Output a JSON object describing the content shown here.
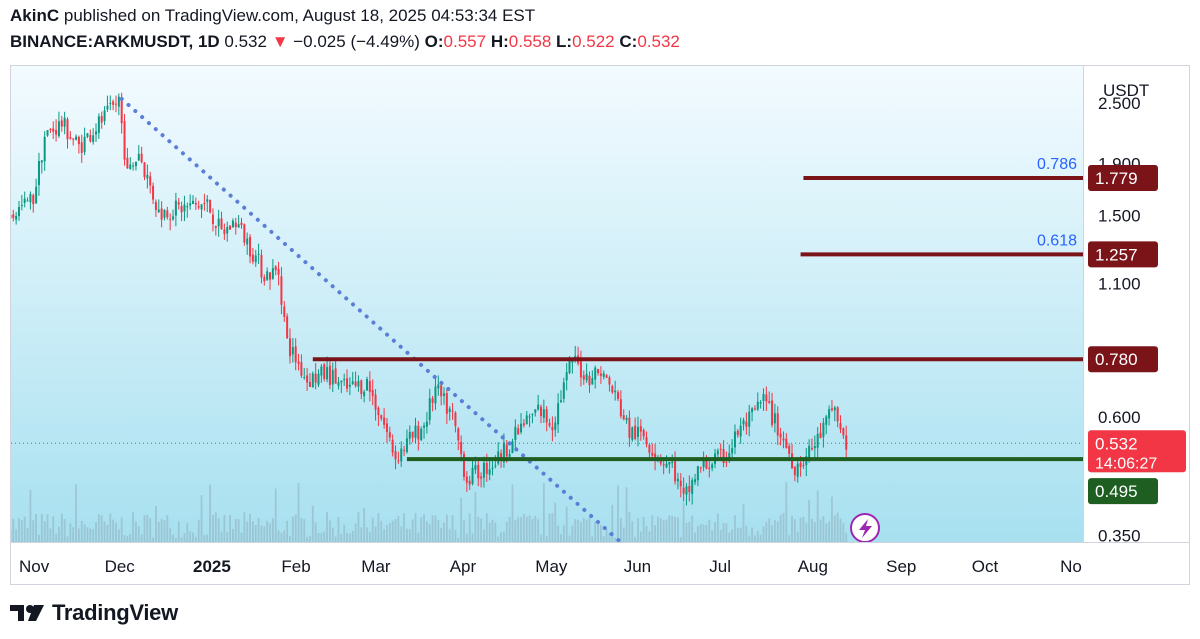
{
  "header": {
    "author": "AkinC",
    "published": "published on TradingView.com, August 18, 2025 04:53:34 EST",
    "symbol": "BINANCE:ARKMUSDT, 1D",
    "last": "0.532",
    "change_arrow": "▼",
    "change": "−0.025 (−4.49%)",
    "o_label": "O:",
    "o": "0.557",
    "h_label": "H:",
    "h": "0.558",
    "l_label": "L:",
    "l": "0.522",
    "c_label": "C:",
    "c": "0.532"
  },
  "footer": {
    "brand": "TradingView",
    "logo_icon": "tradingview-logo-icon"
  },
  "colors": {
    "up": "#089981",
    "down": "#f23645",
    "trend": "#5b7fd6",
    "resistance": "#7b1418",
    "support": "#1e5e20",
    "fib_text": "#2962ff",
    "bg_top": "#f3fbff",
    "bg_bottom": "#a7e0f0"
  },
  "chart_data": {
    "type": "candlestick",
    "symbol": "BINANCE:ARKMUSDT",
    "interval": "1D",
    "y_unit": "USDT",
    "y_scale": "log",
    "ylim": [
      0.32,
      3.2
    ],
    "y_ticks": [
      "2.500",
      "1.900",
      "1.500",
      "1.100",
      "0.600",
      "0.350"
    ],
    "x_ticks": [
      "Nov",
      "Dec",
      "2025",
      "Feb",
      "Mar",
      "Apr",
      "May",
      "Jun",
      "Jul",
      "Aug",
      "Sep",
      "Oct",
      "No"
    ],
    "x_tick_dates": [
      "2024-11-01",
      "2024-12-01",
      "2025-01-01",
      "2025-02-01",
      "2025-03-01",
      "2025-04-01",
      "2025-05-01",
      "2025-06-01",
      "2025-07-01",
      "2025-08-01",
      "2025-09-01",
      "2025-10-01",
      "2025-11-01"
    ],
    "price_path": [
      [
        "2024-10-28",
        1.48
      ],
      [
        "2024-11-06",
        1.62
      ],
      [
        "2024-11-10",
        2.15
      ],
      [
        "2024-11-16",
        2.28
      ],
      [
        "2024-11-22",
        2.05
      ],
      [
        "2024-11-28",
        2.25
      ],
      [
        "2024-12-03",
        2.4
      ],
      [
        "2024-12-06",
        2.55
      ],
      [
        "2024-12-09",
        1.8
      ],
      [
        "2024-12-13",
        2.0
      ],
      [
        "2024-12-20",
        1.52
      ],
      [
        "2024-12-27",
        1.55
      ],
      [
        "2025-01-06",
        1.58
      ],
      [
        "2025-01-11",
        1.38
      ],
      [
        "2025-01-16",
        1.46
      ],
      [
        "2025-01-21",
        1.3
      ],
      [
        "2025-01-26",
        1.15
      ],
      [
        "2025-01-31",
        1.16
      ],
      [
        "2025-02-03",
        0.84
      ],
      [
        "2025-02-10",
        0.71
      ],
      [
        "2025-02-17",
        0.73
      ],
      [
        "2025-02-24",
        0.68
      ],
      [
        "2025-03-03",
        0.7
      ],
      [
        "2025-03-08",
        0.6
      ],
      [
        "2025-03-13",
        0.5
      ],
      [
        "2025-03-18",
        0.54
      ],
      [
        "2025-03-23",
        0.58
      ],
      [
        "2025-03-27",
        0.68
      ],
      [
        "2025-04-02",
        0.6
      ],
      [
        "2025-04-07",
        0.45
      ],
      [
        "2025-04-12",
        0.47
      ],
      [
        "2025-04-17",
        0.49
      ],
      [
        "2025-04-22",
        0.53
      ],
      [
        "2025-04-27",
        0.58
      ],
      [
        "2025-05-02",
        0.62
      ],
      [
        "2025-05-07",
        0.58
      ],
      [
        "2025-05-10",
        0.66
      ],
      [
        "2025-05-14",
        0.78
      ],
      [
        "2025-05-19",
        0.72
      ],
      [
        "2025-05-24",
        0.74
      ],
      [
        "2025-05-29",
        0.66
      ],
      [
        "2025-06-03",
        0.56
      ],
      [
        "2025-06-08",
        0.55
      ],
      [
        "2025-06-13",
        0.5
      ],
      [
        "2025-06-18",
        0.48
      ],
      [
        "2025-06-22",
        0.41
      ],
      [
        "2025-06-27",
        0.47
      ],
      [
        "2025-07-02",
        0.49
      ],
      [
        "2025-07-07",
        0.5
      ],
      [
        "2025-07-11",
        0.56
      ],
      [
        "2025-07-16",
        0.6
      ],
      [
        "2025-07-20",
        0.65
      ],
      [
        "2025-07-25",
        0.57
      ],
      [
        "2025-07-31",
        0.48
      ],
      [
        "2025-08-04",
        0.5
      ],
      [
        "2025-08-08",
        0.54
      ],
      [
        "2025-08-12",
        0.6
      ],
      [
        "2025-08-14",
        0.63
      ],
      [
        "2025-08-16",
        0.56
      ],
      [
        "2025-08-18",
        0.532
      ]
    ],
    "last_price": {
      "value": "0.532",
      "countdown": "14:06:27"
    },
    "horizontal_levels": [
      {
        "value": "1.779",
        "fib": "0.786",
        "start": "2025-08-03",
        "color": "#7b1418"
      },
      {
        "value": "1.257",
        "fib": "0.618",
        "start": "2025-08-02",
        "color": "#7b1418"
      },
      {
        "value": "0.780",
        "start": "2025-02-12",
        "color": "#7b1418"
      },
      {
        "value": "0.495",
        "start": "2025-03-17",
        "color": "#1e5e20"
      }
    ],
    "trendline": {
      "style": "dotted",
      "from": [
        "2024-12-07",
        2.55
      ],
      "to": [
        "2025-06-05",
        0.32
      ]
    },
    "grid": false,
    "legend": "none"
  }
}
